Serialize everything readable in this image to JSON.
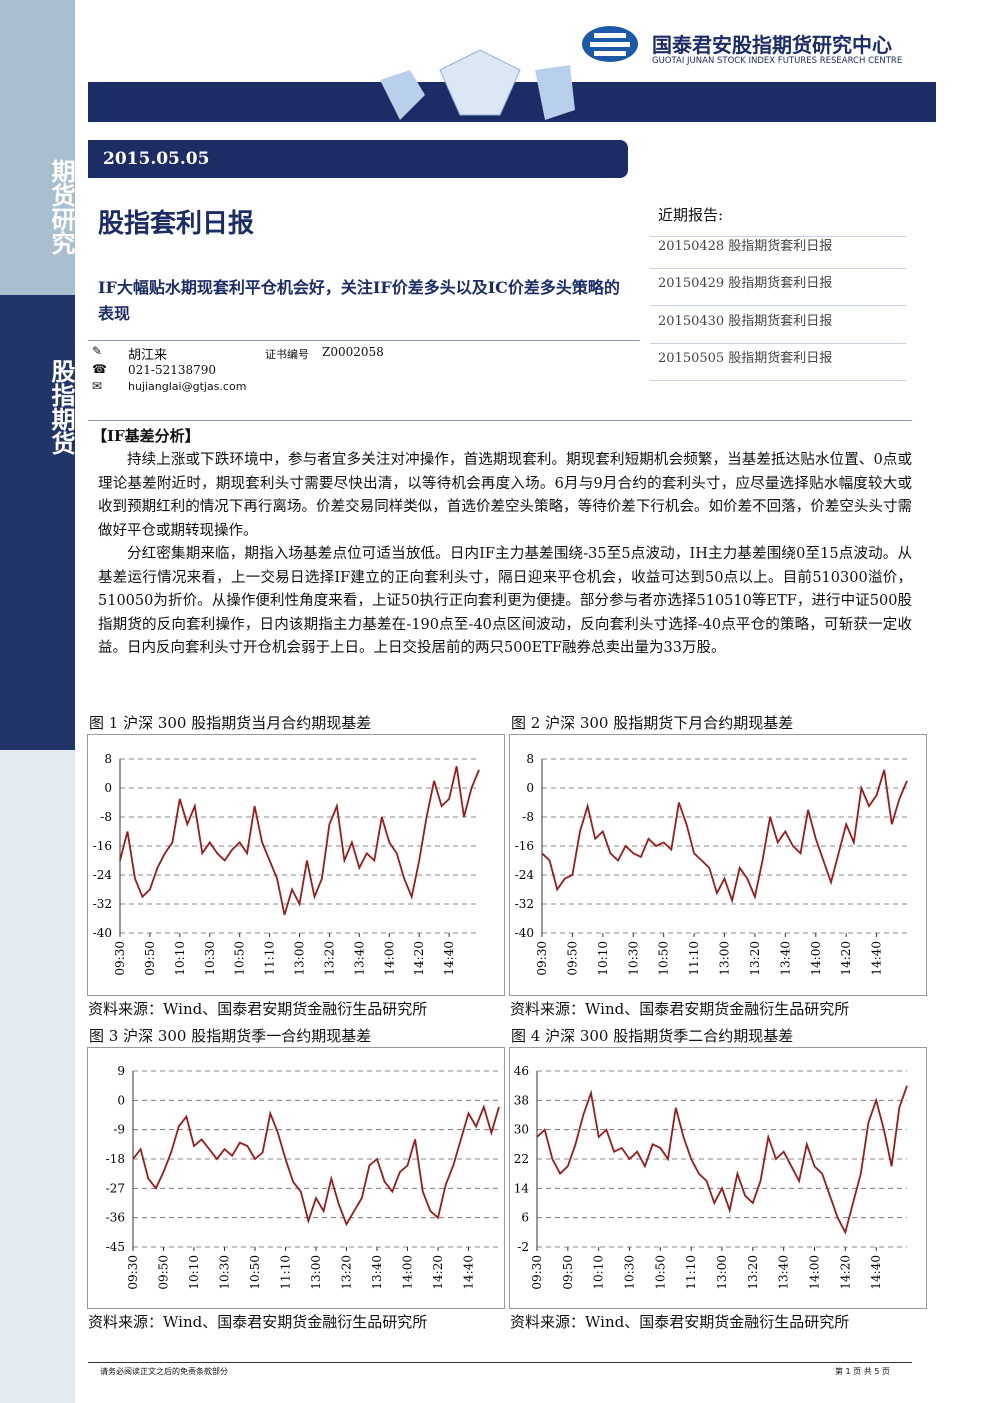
{
  "header": {
    "org_cn": "国泰君安股指期货研究中心",
    "org_en": "GUOTAI JUNAN STOCK INDEX FUTURES RESEARCH CENTRE"
  },
  "sidebar": {
    "top": "期货研究",
    "bottom": "股指期货"
  },
  "date": "2015.05.05",
  "title": "股指套利日报",
  "subtitle": "IF大幅贴水期现套利平仓机会好，关注IF价差多头以及IC价差多头策略的表现",
  "author": {
    "name": "胡江来",
    "cert_label": "证书编号",
    "cert": "Z0002058",
    "phone": "021-52138790",
    "email": "hujianglai@gtjas.com"
  },
  "recent": {
    "heading": "近期报告:",
    "items": [
      "20150428 股指期货套利日报",
      "20150429 股指期货套利日报",
      "20150430 股指期货套利日报",
      "20150505 股指期货套利日报"
    ]
  },
  "section": "【IF基差分析】",
  "paragraphs": [
    "持续上涨或下跌环境中，参与者宜多关注对冲操作，首选期现套利。期现套利短期机会频繁，当基差抵达贴水位置、0点或理论基差附近时，期现套利头寸需要尽快出清，以等待机会再度入场。6月与9月合约的套利头寸，应尽量选择贴水幅度较大或收到预期红利的情况下再行离场。价差交易同样类似，首选价差空头策略，等待价差下行机会。如价差不回落，价差空头头寸需做好平仓或期转现操作。",
    "分红密集期来临，期指入场基差点位可适当放低。日内IF主力基差围绕-35至5点波动，IH主力基差围绕0至15点波动。从基差运行情况来看，上一交易日选择IF建立的正向套利头寸，隔日迎来平仓机会，收益可达到50点以上。目前510300溢价，510050为折价。从操作便利性角度来看，上证50执行正向套利更为便捷。部分参与者亦选择510510等ETF，进行中证500股指期货的反向套利操作，日内该期指主力基差在-190点至-40点区间波动，反向套利头寸选择-40点平仓的策略，可斩获一定收益。日内反向套利头寸开仓机会弱于上日。上日交投居前的两只500ETF融券总卖出量为33万股。"
  ],
  "footer": {
    "disclaimer": "请务必阅读正文之后的免责条款部分",
    "page": "第 1 页 共 5 页"
  },
  "chart_data": [
    {
      "type": "line",
      "title": "图 1 沪深 300 股指期货当月合约期现基差",
      "source": "资料来源：Wind、国泰君安期货金融衍生品研究所",
      "color": "#9b1b1b",
      "grid": true,
      "categories": [
        "09:30",
        null,
        null,
        null,
        "09:50",
        null,
        null,
        null,
        "10:10",
        null,
        null,
        null,
        "10:30",
        null,
        null,
        null,
        "10:50",
        null,
        null,
        null,
        "11:10",
        null,
        null,
        null,
        "13:00",
        null,
        null,
        null,
        "13:20",
        null,
        null,
        null,
        "13:40",
        null,
        null,
        null,
        "14:00",
        null,
        null,
        null,
        "14:20",
        null,
        null,
        null,
        "14:40",
        null,
        null,
        null,
        null
      ],
      "values": [
        -20,
        -12,
        -25,
        -30,
        -28,
        -22,
        -18,
        -15,
        -3,
        -10,
        -5,
        -18,
        -15,
        -18,
        -20,
        -17,
        -15,
        -18,
        -5,
        -15,
        -20,
        -25,
        -35,
        -28,
        -32,
        -20,
        -30,
        -25,
        -10,
        -5,
        -20,
        -15,
        -22,
        -18,
        -20,
        -8,
        -15,
        -18,
        -25,
        -30,
        -20,
        -8,
        2,
        -5,
        -3,
        6,
        -8,
        0,
        5
      ],
      "ylim": [
        -40,
        8
      ],
      "yticks": [
        8,
        0,
        -8,
        -16,
        -24,
        -32,
        -40
      ]
    },
    {
      "type": "line",
      "title": "图 2 沪深 300 股指期货下月合约期现基差",
      "source": "资料来源：Wind、国泰君安期货金融衍生品研究所",
      "color": "#9b1b1b",
      "grid": true,
      "categories": [
        "09:30",
        null,
        null,
        null,
        "09:50",
        null,
        null,
        null,
        "10:10",
        null,
        null,
        null,
        "10:30",
        null,
        null,
        null,
        "10:50",
        null,
        null,
        null,
        "11:10",
        null,
        null,
        null,
        "13:00",
        null,
        null,
        null,
        "13:20",
        null,
        null,
        null,
        "13:40",
        null,
        null,
        null,
        "14:00",
        null,
        null,
        null,
        "14:20",
        null,
        null,
        null,
        "14:40",
        null,
        null,
        null,
        null
      ],
      "values": [
        -18,
        -20,
        -28,
        -25,
        -24,
        -12,
        -5,
        -14,
        -12,
        -18,
        -20,
        -16,
        -18,
        -19,
        -14,
        -16,
        -15,
        -17,
        -4,
        -10,
        -18,
        -20,
        -22,
        -29,
        -25,
        -31,
        -22,
        -25,
        -30,
        -20,
        -8,
        -15,
        -12,
        -16,
        -18,
        -6,
        -14,
        -20,
        -26,
        -18,
        -10,
        -15,
        0,
        -5,
        -2,
        5,
        -10,
        -3,
        2
      ],
      "ylim": [
        -40,
        8
      ],
      "yticks": [
        8,
        0,
        -8,
        -16,
        -24,
        -32,
        -40
      ]
    },
    {
      "type": "line",
      "title": "图 3 沪深 300 股指期货季一合约期现基差",
      "source": "资料来源：Wind、国泰君安期货金融衍生品研究所",
      "color": "#9b1b1b",
      "grid": true,
      "categories": [
        "09:30",
        null,
        null,
        null,
        "09:50",
        null,
        null,
        null,
        "10:10",
        null,
        null,
        null,
        "10:30",
        null,
        null,
        null,
        "10:50",
        null,
        null,
        null,
        "11:10",
        null,
        null,
        null,
        "13:00",
        null,
        null,
        null,
        "13:20",
        null,
        null,
        null,
        "13:40",
        null,
        null,
        null,
        "14:00",
        null,
        null,
        null,
        "14:20",
        null,
        null,
        null,
        "14:40",
        null,
        null,
        null,
        null
      ],
      "values": [
        -18,
        -15,
        -24,
        -27,
        -22,
        -16,
        -8,
        -5,
        -14,
        -12,
        -15,
        -18,
        -15,
        -17,
        -13,
        -14,
        -18,
        -16,
        -4,
        -10,
        -18,
        -25,
        -28,
        -37,
        -30,
        -34,
        -24,
        -32,
        -38,
        -34,
        -30,
        -20,
        -18,
        -25,
        -28,
        -22,
        -20,
        -12,
        -28,
        -34,
        -36,
        -26,
        -20,
        -12,
        -4,
        -8,
        -2,
        -10,
        -2
      ],
      "ylim": [
        -45,
        9
      ],
      "yticks": [
        9,
        0,
        -9,
        -18,
        -27,
        -36,
        -45
      ]
    },
    {
      "type": "line",
      "title": "图 4 沪深 300 股指期货季二合约期现基差",
      "source": "资料来源：Wind、国泰君安期货金融衍生品研究所",
      "color": "#9b1b1b",
      "grid": true,
      "categories": [
        "09:30",
        null,
        null,
        null,
        "09:50",
        null,
        null,
        null,
        "10:10",
        null,
        null,
        null,
        "10:30",
        null,
        null,
        null,
        "10:50",
        null,
        null,
        null,
        "11:10",
        null,
        null,
        null,
        "13:00",
        null,
        null,
        null,
        "13:20",
        null,
        null,
        null,
        "13:40",
        null,
        null,
        null,
        "14:00",
        null,
        null,
        null,
        "14:20",
        null,
        null,
        null,
        "14:40",
        null,
        null,
        null,
        null
      ],
      "values": [
        28,
        30,
        22,
        18,
        20,
        26,
        34,
        40,
        28,
        30,
        24,
        25,
        22,
        24,
        20,
        26,
        25,
        22,
        36,
        28,
        22,
        18,
        16,
        10,
        14,
        8,
        18,
        12,
        10,
        16,
        28,
        22,
        24,
        20,
        16,
        26,
        20,
        18,
        12,
        6,
        2,
        10,
        18,
        32,
        38,
        30,
        20,
        36,
        42
      ],
      "ylim": [
        -2,
        46
      ],
      "yticks": [
        46,
        38,
        30,
        22,
        14,
        6,
        -2
      ]
    }
  ]
}
